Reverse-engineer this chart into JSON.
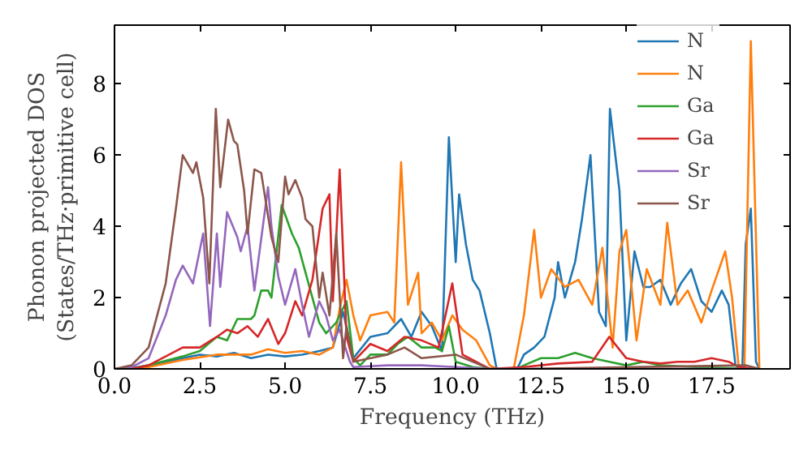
{
  "chart_data": {
    "type": "line",
    "xlabel": "Frequency (THz)",
    "ylabel": "Phonon projected DOS\n(States/THz·primitive cell)",
    "xlim": [
      0,
      19.8
    ],
    "ylim": [
      0,
      9.65
    ],
    "xticks": [
      {
        "value": 0,
        "label": "0.0"
      },
      {
        "value": 2.5,
        "label": "2.5"
      },
      {
        "value": 5,
        "label": "5.0"
      },
      {
        "value": 7.5,
        "label": "7.5"
      },
      {
        "value": 10,
        "label": "10.0"
      },
      {
        "value": 12.5,
        "label": "12.5"
      },
      {
        "value": 15,
        "label": "15.0"
      },
      {
        "value": 17.5,
        "label": "17.5"
      }
    ],
    "yticks": [
      0,
      2,
      4,
      6,
      8
    ],
    "grid": false,
    "legend": "top right",
    "series": [
      {
        "name": "N",
        "color": "#1f77b4",
        "x": [
          0,
          0.5,
          1,
          1.5,
          2,
          2.5,
          3,
          3.5,
          4,
          4.5,
          5,
          5.5,
          6,
          6.4,
          6.7,
          7,
          7.5,
          8,
          8.4,
          8.7,
          9,
          9.3,
          9.6,
          9.8,
          10,
          10.1,
          10.3,
          10.5,
          10.7,
          11,
          11.2,
          11.8,
          12,
          12.3,
          12.6,
          12.9,
          13,
          13.2,
          13.5,
          13.7,
          13.95,
          14.2,
          14.4,
          14.52,
          14.8,
          15,
          15.24,
          15.5,
          15.7,
          16,
          16.3,
          16.6,
          16.9,
          17.2,
          17.5,
          17.8,
          18,
          18.2,
          18.4,
          18.5,
          18.65,
          18.8,
          18.9
        ],
        "values": [
          0,
          0.02,
          0.1,
          0.2,
          0.3,
          0.4,
          0.35,
          0.45,
          0.3,
          0.4,
          0.35,
          0.4,
          0.5,
          0.6,
          1.6,
          0.3,
          0.9,
          1.0,
          1.4,
          0.9,
          1.6,
          1.2,
          0.5,
          6.5,
          3.0,
          4.9,
          3.5,
          2.5,
          2.2,
          1.0,
          0,
          0,
          0.4,
          0.6,
          0.9,
          2.0,
          3.0,
          2.0,
          3.0,
          4.2,
          6.0,
          1.6,
          1.2,
          7.3,
          5.0,
          0.8,
          3.3,
          2.3,
          2.3,
          2.5,
          1.8,
          2.4,
          2.8,
          1.9,
          1.6,
          2.2,
          1.8,
          0.1,
          0,
          3.5,
          4.5,
          0.2,
          0
        ]
      },
      {
        "name": "N",
        "color": "#ff7f0e",
        "x": [
          0,
          0.5,
          1,
          2,
          3,
          3.5,
          4,
          4.5,
          5,
          5.5,
          6,
          6.4,
          6.6,
          6.8,
          7,
          7.2,
          7.5,
          8,
          8.2,
          8.4,
          8.6,
          8.9,
          9,
          9.3,
          9.6,
          9.9,
          10.2,
          10.6,
          11,
          11.2,
          11.7,
          12,
          12.3,
          12.5,
          12.8,
          13.2,
          13.6,
          14,
          14.3,
          14.6,
          14.8,
          15,
          15.3,
          15.6,
          16,
          16.2,
          16.5,
          16.8,
          17.2,
          17.5,
          17.9,
          18.1,
          18.3,
          18.46,
          18.65,
          18.9
        ],
        "values": [
          0,
          0,
          0.05,
          0.25,
          0.4,
          0.4,
          0.4,
          0.55,
          0.45,
          0.5,
          0.4,
          0.6,
          1.7,
          2.5,
          1.5,
          0.8,
          1.5,
          1.6,
          1.3,
          5.8,
          1.8,
          2.7,
          1.0,
          1.3,
          0.8,
          1.5,
          1.1,
          0.8,
          0.1,
          0,
          0,
          1.5,
          3.9,
          2.0,
          2.8,
          2.3,
          2.5,
          1.8,
          3.4,
          0.6,
          3.3,
          3.9,
          0.8,
          2.8,
          1.8,
          4.1,
          1.8,
          2.2,
          1.3,
          2.2,
          3.3,
          2.0,
          0,
          0,
          9.2,
          0
        ]
      },
      {
        "name": "Ga",
        "color": "#2ca02c",
        "x": [
          0,
          0.5,
          1,
          2,
          2.5,
          3,
          3.3,
          3.6,
          4,
          4.1,
          4.3,
          4.5,
          4.6,
          4.9,
          5.2,
          5.4,
          5.6,
          5.8,
          6,
          6.2,
          6.5,
          6.8,
          7,
          7.2,
          7.5,
          8,
          8.3,
          8.6,
          9,
          9.4,
          9.6,
          9.8,
          10,
          10.5,
          11,
          11.8,
          12,
          12.5,
          13,
          13.5,
          14,
          14.5,
          15,
          15.5,
          16,
          17,
          18,
          18.9
        ],
        "values": [
          0,
          0,
          0.1,
          0.35,
          0.5,
          0.9,
          0.8,
          1.4,
          1.4,
          1.5,
          2.2,
          2.2,
          2.0,
          4.6,
          3.8,
          3.4,
          2.7,
          2.0,
          1.3,
          1.0,
          1.3,
          1.9,
          0.3,
          0.1,
          0.4,
          0.4,
          0.7,
          0.9,
          0.6,
          0.6,
          0.5,
          1.2,
          0.2,
          0.05,
          0,
          0,
          0.1,
          0.3,
          0.3,
          0.45,
          0.3,
          0.2,
          0.1,
          0.2,
          0.1,
          0.05,
          0.02,
          0
        ]
      },
      {
        "name": "Ga",
        "color": "#d62728",
        "x": [
          0,
          0.5,
          1,
          2,
          2.5,
          3,
          3.3,
          3.6,
          3.9,
          4.2,
          4.5,
          4.8,
          5,
          5.3,
          5.5,
          5.8,
          6.1,
          6.3,
          6.4,
          6.6,
          6.8,
          7,
          7.5,
          8,
          8.5,
          9,
          9.5,
          9.9,
          10.2,
          10.8,
          11,
          12,
          13,
          14,
          14.5,
          15,
          15.5,
          16,
          16.5,
          17,
          17.5,
          18,
          18.3,
          18.9
        ],
        "values": [
          0,
          0,
          0.1,
          0.6,
          0.6,
          0.9,
          1.1,
          1.0,
          1.2,
          0.9,
          1.4,
          0.7,
          1.0,
          1.9,
          1.5,
          2.5,
          4.5,
          4.9,
          1.9,
          5.6,
          0.9,
          0.2,
          0.7,
          0.5,
          0.9,
          0.8,
          0.6,
          2.4,
          0.4,
          0.1,
          0,
          0.05,
          0.15,
          0.2,
          0.9,
          0.3,
          0.2,
          0.15,
          0.2,
          0.2,
          0.3,
          0.2,
          0.05,
          0
        ]
      },
      {
        "name": "Sr",
        "color": "#9467bd",
        "x": [
          0,
          0.5,
          1,
          1.5,
          1.8,
          2,
          2.3,
          2.6,
          2.8,
          3,
          3.1,
          3.3,
          3.6,
          3.7,
          3.9,
          4.1,
          4.5,
          4.6,
          4.8,
          5,
          5.3,
          5.5,
          5.7,
          6,
          6.2,
          6.4,
          6.6,
          6.9,
          7,
          8,
          9,
          10,
          11,
          12,
          18.9
        ],
        "values": [
          0,
          0.05,
          0.3,
          1.5,
          2.5,
          2.9,
          2.4,
          3.8,
          1.2,
          3.8,
          2.3,
          4.4,
          3.7,
          3.3,
          4.0,
          2.2,
          5.1,
          4.0,
          2.6,
          1.8,
          2.8,
          1.8,
          0.9,
          1.9,
          1.5,
          0.8,
          1.1,
          0.2,
          0.05,
          0.1,
          0.1,
          0.05,
          0,
          0,
          0
        ]
      },
      {
        "name": "Sr",
        "color": "#8c564b",
        "x": [
          0,
          0.5,
          1,
          1.5,
          1.8,
          2,
          2.3,
          2.4,
          2.6,
          2.78,
          2.97,
          3.1,
          3.33,
          3.5,
          3.6,
          3.8,
          3.9,
          4.1,
          4.3,
          4.6,
          4.8,
          5,
          5.1,
          5.3,
          5.5,
          5.6,
          5.8,
          6,
          6.1,
          6.3,
          6.5,
          6.7,
          6.8,
          7,
          7.5,
          8,
          8.5,
          9,
          10,
          11,
          12,
          18.5,
          18.9
        ],
        "values": [
          0,
          0.1,
          0.6,
          2.4,
          4.5,
          6.0,
          5.5,
          5.8,
          4.8,
          2.4,
          7.3,
          5.1,
          7.0,
          6.4,
          6.3,
          5.0,
          3.8,
          5.6,
          5.5,
          3.7,
          3.0,
          5.4,
          4.9,
          5.3,
          4.8,
          4.2,
          4.0,
          2.0,
          2.7,
          1.5,
          3.8,
          0.3,
          1.2,
          0.2,
          0.3,
          0.4,
          0.6,
          0.3,
          0.4,
          0,
          0,
          0.1,
          0
        ]
      }
    ]
  }
}
